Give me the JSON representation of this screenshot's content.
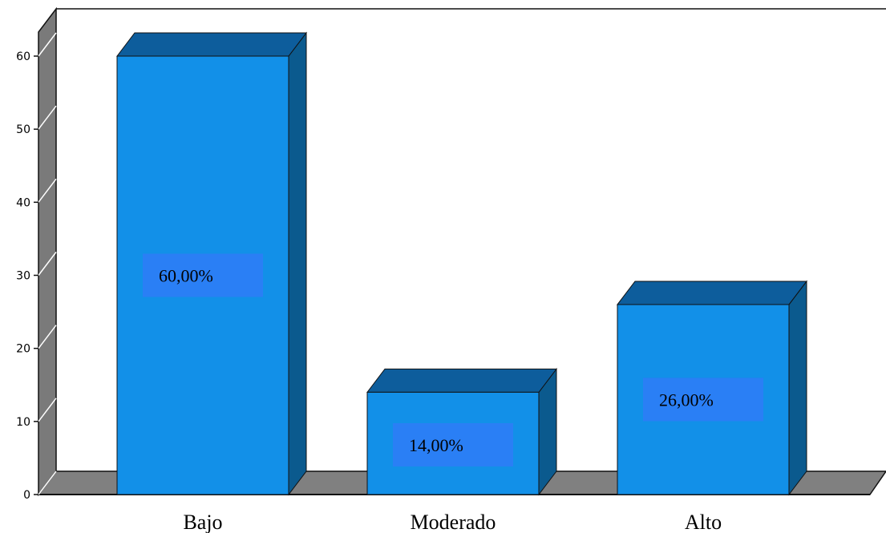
{
  "chart_data": {
    "type": "bar",
    "categories": [
      "Bajo",
      "Moderado",
      "Alto"
    ],
    "values": [
      60,
      14,
      26
    ],
    "data_labels": [
      "60,00%",
      "14,00%",
      "26,00%"
    ],
    "ylim": [
      0,
      60
    ],
    "yticks": [
      "0",
      "10",
      "20",
      "30",
      "40",
      "50",
      "60"
    ],
    "title": "",
    "xlabel": "",
    "ylabel": "",
    "grid": false,
    "legend": "none",
    "style": "3d"
  },
  "colors": {
    "bar_front": "#1290e8",
    "bar_top": "#0d5d9c",
    "bar_side": "#0b5a8e",
    "label_box": "#2a7ff5",
    "wall_side": "#7a7a7a",
    "floor": "#808080"
  }
}
